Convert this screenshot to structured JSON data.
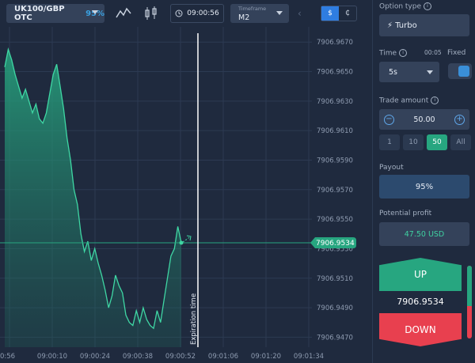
{
  "asset": {
    "name": "UK100/GBP OTC",
    "payout_pct": "95%"
  },
  "timer": "09:00:56",
  "timeframe": {
    "label": "Timeframe",
    "value": "M2"
  },
  "currency": {
    "active": "$",
    "inactive": "₵"
  },
  "chart_data": {
    "type": "area",
    "y_ticks": [
      "7906.9670",
      "7906.9650",
      "7906.9630",
      "7906.9610",
      "7906.9590",
      "7906.9570",
      "7906.9550",
      "7906.9530",
      "7906.9510",
      "7906.9490",
      "7906.9470"
    ],
    "x_ticks": [
      "0:56",
      "09:00:10",
      "09:00:24",
      "09:00:38",
      "09:00:52",
      "09:01:06",
      "09:01:20",
      "09:01:34"
    ],
    "current_price": "7906.9534",
    "expiration_label": "Expiration time",
    "ylim": [
      7906.9467,
      7906.9676
    ],
    "prices": [
      7906.9653,
      7906.9665,
      7906.9658,
      7906.9648,
      7906.964,
      7906.9632,
      7906.9638,
      7906.963,
      7906.9622,
      7906.9628,
      7906.9618,
      7906.9615,
      7906.9622,
      7906.9635,
      7906.9648,
      7906.9655,
      7906.964,
      7906.9625,
      7906.9605,
      7906.959,
      7906.957,
      7906.956,
      7906.954,
      7906.9528,
      7906.9535,
      7906.9522,
      7906.953,
      7906.952,
      7906.9512,
      7906.9502,
      7906.949,
      7906.9498,
      7906.9512,
      7906.9505,
      7906.95,
      7906.9485,
      7906.948,
      7906.9478,
      7906.9488,
      7906.948,
      7906.949,
      7906.9482,
      7906.9478,
      7906.9476,
      7906.9488,
      7906.948,
      7906.9495,
      7906.951,
      7906.9525,
      7906.953,
      7906.9545,
      7906.9534
    ]
  },
  "sidebar": {
    "option_type_label": "Option type",
    "option_type_value": "⚡ Turbo",
    "time_label": "Time",
    "time_countdown": "00:05",
    "fixed_label": "Fixed",
    "time_value": "5s",
    "trade_amount_label": "Trade amount",
    "trade_amount_value": "50.00",
    "presets": [
      "1",
      "10",
      "50",
      "All"
    ],
    "payout_label": "Payout",
    "payout_value": "95%",
    "profit_label": "Potential profit",
    "profit_value": "47.50 USD",
    "up_label": "UP",
    "price": "7906.9534",
    "down_label": "DOWN",
    "sentiment_up_fraction": 0.55
  },
  "colors": {
    "up": "#27a680",
    "down": "#e8404f",
    "accent": "#2f7de1",
    "line": "#3fd7a4"
  }
}
